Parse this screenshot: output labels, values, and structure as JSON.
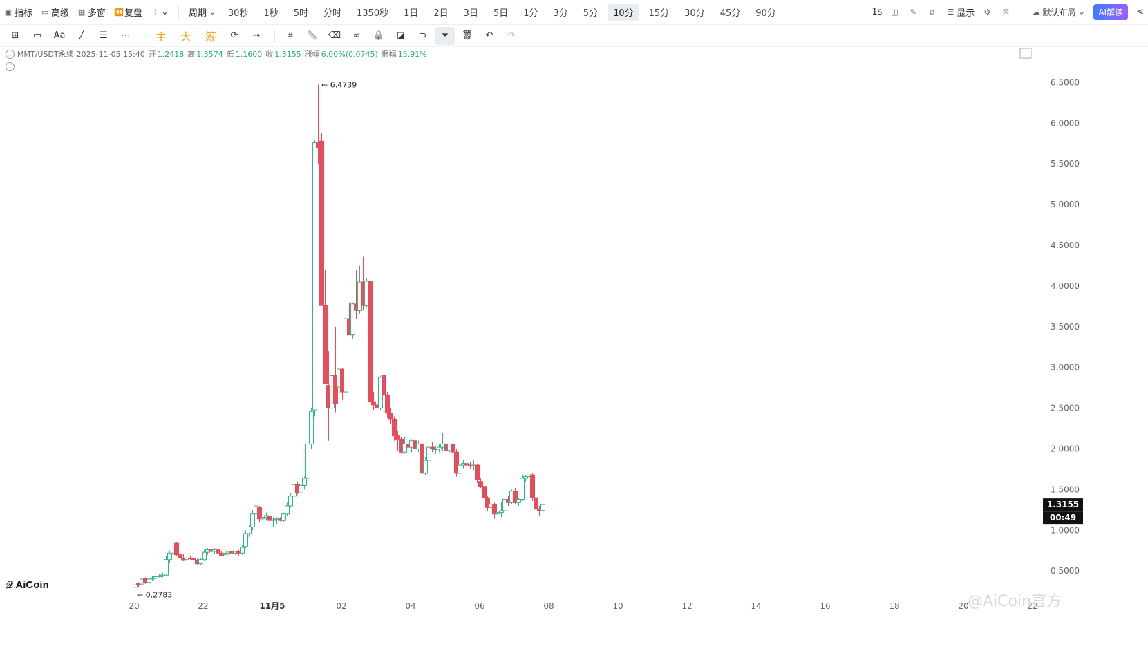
{
  "toolbar": {
    "left": [
      {
        "icon": "indicator-icon",
        "label": "指标"
      },
      {
        "icon": "advanced-icon",
        "label": "高级"
      },
      {
        "icon": "multi-window-icon",
        "label": "多窗"
      },
      {
        "icon": "replay-icon",
        "label": "复盘"
      },
      {
        "icon": "chart-type-icon",
        "label": ""
      }
    ],
    "period_label": "周期",
    "periods": [
      "30秒",
      "1秒",
      "5时",
      "分时",
      "1350秒",
      "1日",
      "2日",
      "3日",
      "5日",
      "1分",
      "3分",
      "5分",
      "10分",
      "15分",
      "30分",
      "45分",
      "90分"
    ],
    "active_period": "10分",
    "right": {
      "one_s": "1s",
      "display": "显示",
      "layout": "默认布局",
      "ai": "AI解读"
    }
  },
  "drawing_tools": {
    "labels": {
      "main": "主",
      "big": "大",
      "chips": "筹"
    }
  },
  "ohlc": {
    "symbol": "MMT/USDT永续",
    "time": "2025-11-05 15:40",
    "open_label": "开",
    "open": "1.2418",
    "high_label": "高",
    "high": "1.3574",
    "low_label": "低",
    "low": "1.1600",
    "close_label": "收",
    "close": "1.3155",
    "change_label": "涨幅",
    "change": "6.00%(0.0745)",
    "amp_label": "振幅",
    "amp": "15.91%"
  },
  "logo": "AiCoin",
  "watermark": "@AiCoin官方",
  "colors": {
    "up": "#2eb88a",
    "down": "#e84d5b",
    "grid_text": "#666666"
  },
  "chart_data": {
    "type": "candlestick",
    "title": "",
    "y_ticks": [
      0.5,
      1.0,
      1.5,
      2.0,
      2.5,
      3.0,
      3.5,
      4.0,
      4.5,
      5.0,
      5.5,
      6.0,
      6.5
    ],
    "y_range": [
      0.23,
      6.75
    ],
    "x_ticks": [
      {
        "label": "20",
        "t": 0
      },
      {
        "label": "22",
        "t": 20
      },
      {
        "label": "11月5",
        "t": 40,
        "bold": true
      },
      {
        "label": "02",
        "t": 60
      },
      {
        "label": "04",
        "t": 80
      },
      {
        "label": "06",
        "t": 100
      },
      {
        "label": "08",
        "t": 120
      },
      {
        "label": "10",
        "t": 140
      },
      {
        "label": "12",
        "t": 160
      },
      {
        "label": "14",
        "t": 180
      },
      {
        "label": "16",
        "t": 200
      },
      {
        "label": "18",
        "t": 220
      },
      {
        "label": "20",
        "t": 240
      },
      {
        "label": "22",
        "t": 260
      }
    ],
    "last_price": "1.3155",
    "countdown": "00:49",
    "max_marker": "6.4739",
    "min_marker": "0.2783",
    "candles": [
      [
        0.3,
        0.35,
        0.2783,
        0.33
      ],
      [
        0.35,
        0.36,
        0.3,
        0.33
      ],
      [
        0.34,
        0.43,
        0.3,
        0.4
      ],
      [
        0.41,
        0.42,
        0.34,
        0.36
      ],
      [
        0.36,
        0.42,
        0.34,
        0.4
      ],
      [
        0.4,
        0.44,
        0.38,
        0.41
      ],
      [
        0.41,
        0.44,
        0.39,
        0.43
      ],
      [
        0.43,
        0.46,
        0.42,
        0.44
      ],
      [
        0.44,
        0.48,
        0.42,
        0.45
      ],
      [
        0.45,
        0.68,
        0.44,
        0.64
      ],
      [
        0.64,
        0.75,
        0.6,
        0.72
      ],
      [
        0.72,
        0.86,
        0.7,
        0.82
      ],
      [
        0.84,
        0.85,
        0.68,
        0.7
      ],
      [
        0.7,
        0.73,
        0.64,
        0.66
      ],
      [
        0.66,
        0.71,
        0.62,
        0.63
      ],
      [
        0.64,
        0.68,
        0.62,
        0.66
      ],
      [
        0.66,
        0.69,
        0.64,
        0.65
      ],
      [
        0.65,
        0.69,
        0.6,
        0.64
      ],
      [
        0.63,
        0.65,
        0.58,
        0.59
      ],
      [
        0.59,
        0.66,
        0.57,
        0.64
      ],
      [
        0.64,
        0.76,
        0.62,
        0.73
      ],
      [
        0.73,
        0.78,
        0.7,
        0.76
      ],
      [
        0.76,
        0.78,
        0.72,
        0.74
      ],
      [
        0.74,
        0.78,
        0.71,
        0.76
      ],
      [
        0.76,
        0.78,
        0.71,
        0.72
      ],
      [
        0.72,
        0.74,
        0.68,
        0.69
      ],
      [
        0.7,
        0.73,
        0.68,
        0.72
      ],
      [
        0.72,
        0.75,
        0.7,
        0.74
      ],
      [
        0.74,
        0.76,
        0.71,
        0.72
      ],
      [
        0.72,
        0.75,
        0.7,
        0.74
      ],
      [
        0.74,
        0.76,
        0.69,
        0.72
      ],
      [
        0.72,
        0.82,
        0.7,
        0.79
      ],
      [
        0.8,
        1.0,
        0.78,
        0.96
      ],
      [
        0.96,
        1.06,
        0.92,
        1.04
      ],
      [
        1.04,
        1.25,
        1.0,
        1.2
      ],
      [
        1.2,
        1.34,
        1.12,
        1.3
      ],
      [
        1.28,
        1.3,
        1.1,
        1.14
      ],
      [
        1.14,
        1.19,
        1.1,
        1.16
      ],
      [
        1.16,
        1.22,
        1.12,
        1.18
      ],
      [
        1.17,
        1.19,
        1.08,
        1.12
      ],
      [
        1.12,
        1.16,
        1.04,
        1.13
      ],
      [
        1.13,
        1.16,
        1.08,
        1.14
      ],
      [
        1.14,
        1.16,
        1.11,
        1.12
      ],
      [
        1.12,
        1.22,
        1.1,
        1.2
      ],
      [
        1.2,
        1.34,
        1.18,
        1.3
      ],
      [
        1.3,
        1.46,
        1.28,
        1.42
      ],
      [
        1.42,
        1.59,
        1.39,
        1.56
      ],
      [
        1.56,
        1.6,
        1.44,
        1.46
      ],
      [
        1.46,
        1.62,
        1.44,
        1.55
      ],
      [
        1.55,
        1.66,
        1.5,
        1.64
      ],
      [
        1.64,
        2.1,
        1.6,
        2.06
      ],
      [
        2.06,
        2.5,
        2.0,
        2.46
      ],
      [
        2.48,
        5.8,
        2.4,
        5.76
      ],
      [
        5.76,
        6.4739,
        5.5,
        5.7
      ],
      [
        5.78,
        5.88,
        3.8,
        3.76
      ],
      [
        3.76,
        4.2,
        2.8,
        2.8
      ],
      [
        2.78,
        3.2,
        2.1,
        2.5
      ],
      [
        2.5,
        3.0,
        2.3,
        2.9
      ],
      [
        2.9,
        3.5,
        2.45,
        2.56
      ],
      [
        2.76,
        3.1,
        2.6,
        2.98
      ],
      [
        2.98,
        2.99,
        2.6,
        2.7
      ],
      [
        2.7,
        3.6,
        2.68,
        3.6
      ],
      [
        3.6,
        3.8,
        3.4,
        3.4
      ],
      [
        3.4,
        3.8,
        3.35,
        3.78
      ],
      [
        3.78,
        4.2,
        3.6,
        3.7
      ],
      [
        3.7,
        4.25,
        3.66,
        4.05
      ],
      [
        4.05,
        4.36,
        3.7,
        3.76
      ],
      [
        3.76,
        4.1,
        3.74,
        4.06
      ],
      [
        4.06,
        4.18,
        2.58,
        2.58
      ],
      [
        2.58,
        2.7,
        2.48,
        2.54
      ],
      [
        2.54,
        2.62,
        2.28,
        2.5
      ],
      [
        2.5,
        2.9,
        2.48,
        2.88
      ],
      [
        2.9,
        3.1,
        2.6,
        2.66
      ],
      [
        2.66,
        2.7,
        2.38,
        2.44
      ],
      [
        2.44,
        2.5,
        2.3,
        2.36
      ],
      [
        2.36,
        2.4,
        2.1,
        2.16
      ],
      [
        2.16,
        2.22,
        1.98,
        2.12
      ],
      [
        2.12,
        2.14,
        1.94,
        1.96
      ],
      [
        1.96,
        2.14,
        1.94,
        2.06
      ],
      [
        2.06,
        2.08,
        1.98,
        2.02
      ],
      [
        2.02,
        2.12,
        1.96,
        2.1
      ],
      [
        2.1,
        2.12,
        1.98,
        2.0
      ],
      [
        2.0,
        2.1,
        1.96,
        2.06
      ],
      [
        2.06,
        2.1,
        1.7,
        1.7
      ],
      [
        1.7,
        1.9,
        1.68,
        1.86
      ],
      [
        1.86,
        2.06,
        1.82,
        2.02
      ],
      [
        2.02,
        2.08,
        1.96,
        2.0
      ],
      [
        2.0,
        2.04,
        1.94,
        2.0
      ],
      [
        2.0,
        2.06,
        1.96,
        2.02
      ],
      [
        2.02,
        2.2,
        1.98,
        2.06
      ],
      [
        2.06,
        2.08,
        1.94,
        1.98
      ],
      [
        1.98,
        2.06,
        1.96,
        2.06
      ],
      [
        2.06,
        2.08,
        1.94,
        1.96
      ],
      [
        1.96,
        2.0,
        1.66,
        1.7
      ],
      [
        1.7,
        1.82,
        1.66,
        1.8
      ],
      [
        1.8,
        1.86,
        1.76,
        1.82
      ],
      [
        1.82,
        1.9,
        1.76,
        1.8
      ],
      [
        1.8,
        1.84,
        1.76,
        1.79
      ],
      [
        1.79,
        1.86,
        1.74,
        1.8
      ],
      [
        1.8,
        1.82,
        1.58,
        1.62
      ],
      [
        1.6,
        1.64,
        1.52,
        1.54
      ],
      [
        1.54,
        1.56,
        1.38,
        1.4
      ],
      [
        1.4,
        1.42,
        1.24,
        1.28
      ],
      [
        1.28,
        1.36,
        1.24,
        1.32
      ],
      [
        1.32,
        1.34,
        1.14,
        1.2
      ],
      [
        1.2,
        1.3,
        1.16,
        1.22
      ],
      [
        1.22,
        1.34,
        1.16,
        1.24
      ],
      [
        1.24,
        1.56,
        1.22,
        1.38
      ],
      [
        1.38,
        1.42,
        1.3,
        1.34
      ],
      [
        1.34,
        1.5,
        1.32,
        1.48
      ],
      [
        1.48,
        1.52,
        1.32,
        1.34
      ],
      [
        1.34,
        1.4,
        1.3,
        1.38
      ],
      [
        1.38,
        1.68,
        1.36,
        1.64
      ],
      [
        1.64,
        1.68,
        1.6,
        1.66
      ],
      [
        1.66,
        1.96,
        1.62,
        1.68
      ],
      [
        1.68,
        1.7,
        1.36,
        1.4
      ],
      [
        1.4,
        1.42,
        1.22,
        1.26
      ],
      [
        1.26,
        1.3,
        1.18,
        1.24
      ],
      [
        1.2418,
        1.3574,
        1.16,
        1.3155
      ]
    ]
  }
}
